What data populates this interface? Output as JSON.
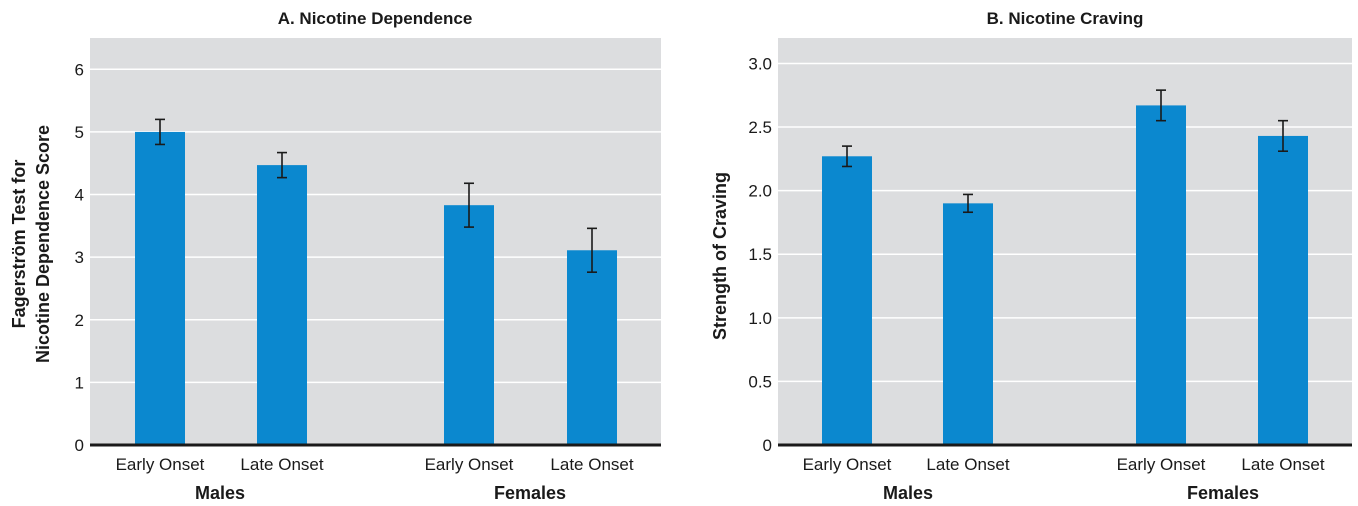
{
  "chart_data": [
    {
      "type": "bar",
      "title": "A. Nicotine Dependence",
      "ylabel_lines": [
        "Fagerström Test for",
        "Nicotine Dependence Score"
      ],
      "ylim": [
        0,
        6.5
      ],
      "yticks": [
        0,
        1,
        2,
        3,
        4,
        5,
        6
      ],
      "ytick_labels": [
        "0",
        "1",
        "2",
        "3",
        "4",
        "5",
        "6"
      ],
      "grid": true,
      "groups": [
        {
          "label": "Males",
          "categories": [
            "Early Onset",
            "Late Onset"
          ],
          "values": [
            5.0,
            4.47
          ],
          "error": [
            0.2,
            0.2
          ]
        },
        {
          "label": "Females",
          "categories": [
            "Early Onset",
            "Late Onset"
          ],
          "values": [
            3.83,
            3.11
          ],
          "error": [
            0.35,
            0.35
          ]
        }
      ]
    },
    {
      "type": "bar",
      "title": "B. Nicotine Craving",
      "ylabel_lines": [
        "Strength of Craving"
      ],
      "ylim": [
        0,
        3.2
      ],
      "yticks": [
        0,
        0.5,
        1.0,
        1.5,
        2.0,
        2.5,
        3.0
      ],
      "ytick_labels": [
        "0",
        "0.5",
        "1.0",
        "1.5",
        "2.0",
        "2.5",
        "3.0"
      ],
      "grid": true,
      "groups": [
        {
          "label": "Males",
          "categories": [
            "Early Onset",
            "Late Onset"
          ],
          "values": [
            2.27,
            1.9
          ],
          "error": [
            0.08,
            0.07
          ]
        },
        {
          "label": "Females",
          "categories": [
            "Early Onset",
            "Late Onset"
          ],
          "values": [
            2.67,
            2.43
          ],
          "error": [
            0.12,
            0.12
          ]
        }
      ]
    }
  ],
  "colors": {
    "bar": "#0b88cf",
    "panel": "#dcdddf",
    "grid": "#ffffff",
    "axis": "#1a1a1a"
  }
}
